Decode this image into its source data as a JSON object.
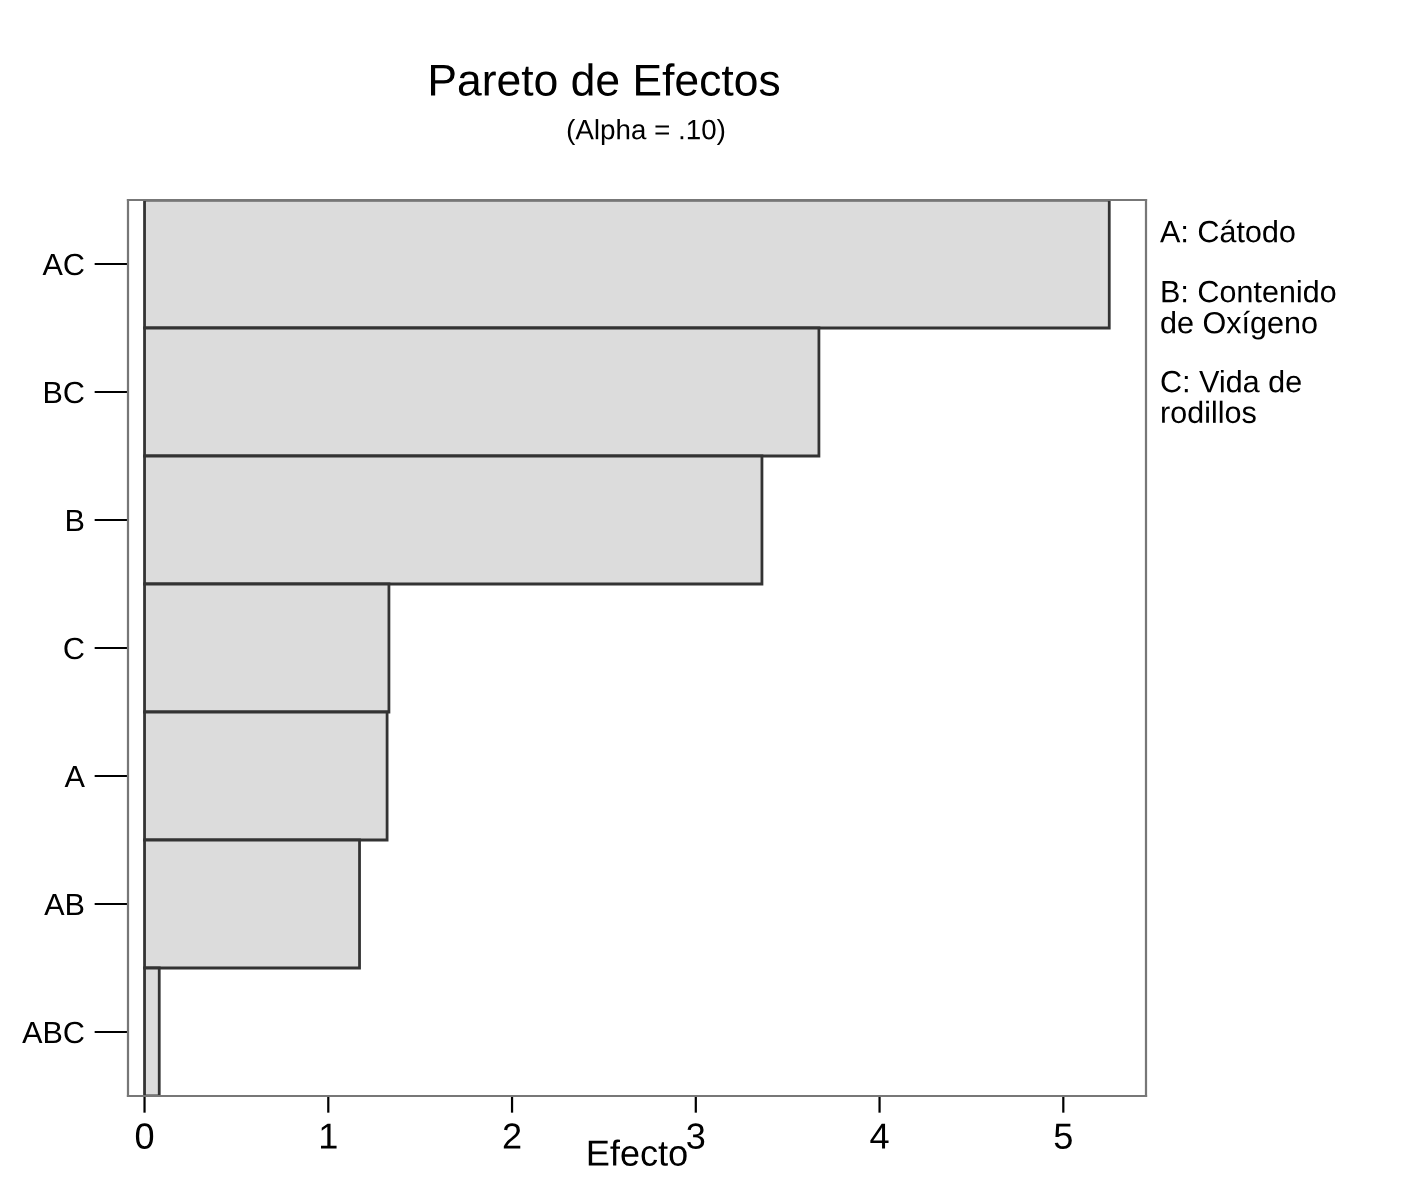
{
  "chart_data": {
    "type": "bar",
    "orientation": "horizontal",
    "title": "Pareto de Efectos",
    "subtitle": "(Alpha = .10)",
    "xlabel": "Efecto",
    "categories": [
      "AC",
      "BC",
      "B",
      "C",
      "A",
      "AB",
      "ABC"
    ],
    "values": [
      5.25,
      3.67,
      3.36,
      1.33,
      1.32,
      1.17,
      0.08
    ],
    "color": "#dcdcdc",
    "xlim": [
      -0.09,
      5.45
    ],
    "xticks": [
      0,
      1,
      2,
      3,
      4,
      5
    ],
    "grid": false,
    "legend": false,
    "annotations": [
      "A: Cátodo",
      "B: Contenido\nde Oxígeno",
      "C: Vida de\nrodillos"
    ]
  }
}
